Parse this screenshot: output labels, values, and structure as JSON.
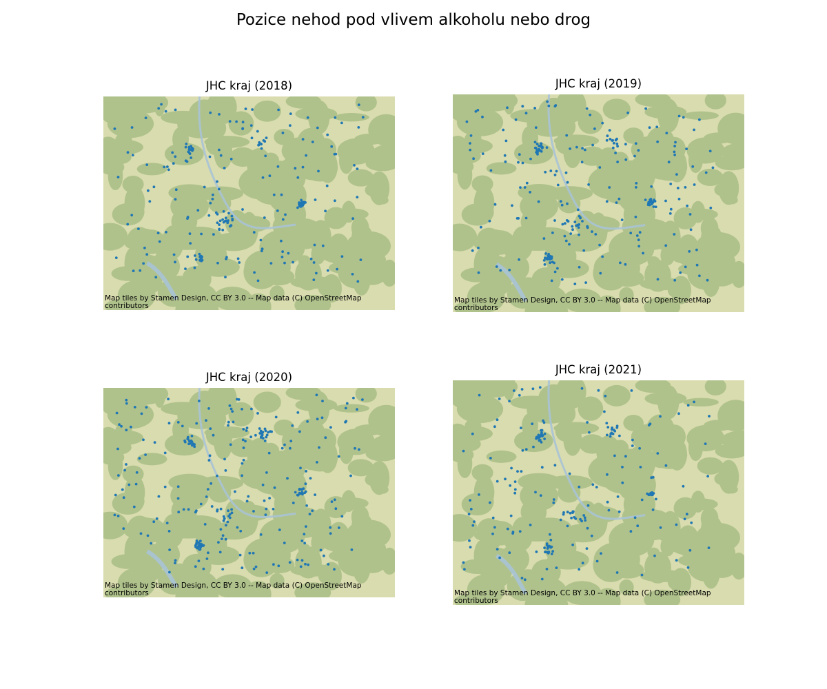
{
  "figure": {
    "title": "Pozice nehod pod vlivem alkoholu nebo drog"
  },
  "colors": {
    "marker": "#1f77b4",
    "map_base": "#d9dcae",
    "forest": "#8fae72",
    "water": "#a9c3d6"
  },
  "panels": [
    {
      "title": "JHC kraj (2018)",
      "attribution": "Map tiles by Stamen Design, CC BY 3.0 -- Map data (C) OpenStreetMap contributors",
      "seed": 2018,
      "points": 230
    },
    {
      "title": "JHC kraj (2019)",
      "attribution": "Map tiles by Stamen Design, CC BY 3.0 -- Map data (C) OpenStreetMap contributors",
      "seed": 2019,
      "points": 260
    },
    {
      "title": "JHC kraj (2020)",
      "attribution": "Map tiles by Stamen Design, CC BY 3.0 -- Map data (C) OpenStreetMap contributors",
      "seed": 2020,
      "points": 280
    },
    {
      "title": "JHC kraj (2021)",
      "attribution": "Map tiles by Stamen Design, CC BY 3.0 -- Map data (C) OpenStreetMap contributors",
      "seed": 2021,
      "points": 210
    }
  ]
}
